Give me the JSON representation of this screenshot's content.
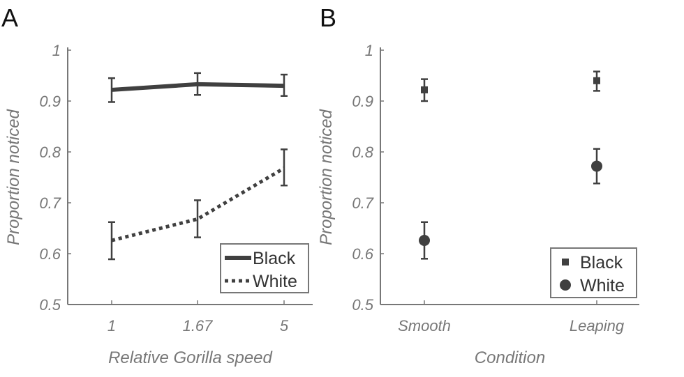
{
  "colors": {
    "data": "#404040",
    "axis": "#777777"
  },
  "chart_data": [
    {
      "type": "line",
      "panel_label": "A",
      "xlabel": "Relative Gorilla speed",
      "ylabel": "Proportion noticed",
      "categories": [
        "1",
        "1.67",
        "5"
      ],
      "ylim": [
        0.5,
        1
      ],
      "yticks": [
        "0.5",
        "0.6",
        "0.7",
        "0.8",
        "0.9",
        "1"
      ],
      "grid": false,
      "legend_position": "bottom-right",
      "series": [
        {
          "name": "Black",
          "style": "solid",
          "values": [
            0.922,
            0.933,
            0.93
          ],
          "err_low": [
            0.898,
            0.912,
            0.91
          ],
          "err_high": [
            0.945,
            0.955,
            0.952
          ]
        },
        {
          "name": "White",
          "style": "dotted",
          "values": [
            0.626,
            0.668,
            0.768
          ],
          "err_low": [
            0.589,
            0.632,
            0.734
          ],
          "err_high": [
            0.662,
            0.705,
            0.805
          ]
        }
      ]
    },
    {
      "type": "scatter",
      "panel_label": "B",
      "xlabel": "Condition",
      "ylabel": "Proportion noticed",
      "categories": [
        "Smooth",
        "Leaping"
      ],
      "ylim": [
        0.5,
        1
      ],
      "yticks": [
        "0.5",
        "0.6",
        "0.7",
        "0.8",
        "0.9",
        "1"
      ],
      "grid": false,
      "legend_position": "bottom-right",
      "series": [
        {
          "name": "Black",
          "marker": "square",
          "values": [
            0.922,
            0.94
          ],
          "err_low": [
            0.9,
            0.92
          ],
          "err_high": [
            0.943,
            0.958
          ]
        },
        {
          "name": "White",
          "marker": "circle",
          "values": [
            0.626,
            0.772
          ],
          "err_low": [
            0.59,
            0.738
          ],
          "err_high": [
            0.662,
            0.806
          ]
        }
      ]
    }
  ]
}
